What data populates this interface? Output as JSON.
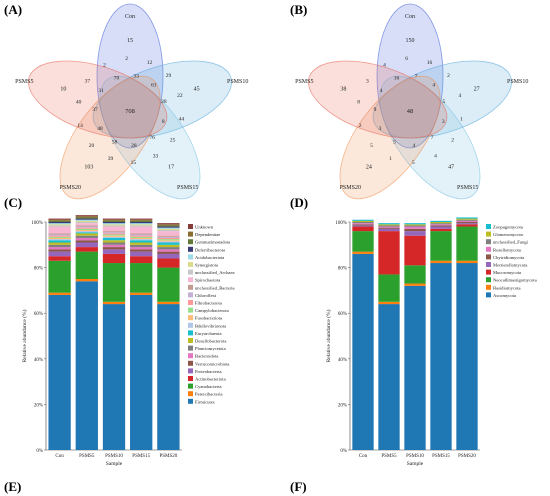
{
  "panel_labels": {
    "a": "(A)",
    "b": "(B)",
    "c": "(C)",
    "d": "(D)",
    "e": "(E)",
    "f": "(F)"
  },
  "colors": {
    "venn": [
      "#3b5bdb",
      "#4ea3d9",
      "#74c0e3",
      "#f08c4a",
      "#e8604c"
    ],
    "stack": [
      "#1f77b4",
      "#ff7f0e",
      "#2ca02c",
      "#d62728",
      "#9467bd",
      "#8c564b",
      "#e377c2",
      "#7f7f7f",
      "#bcbd22",
      "#17becf",
      "#aec7e8",
      "#ffbb78",
      "#98df8a",
      "#ff9896",
      "#c5b0d5",
      "#c49c94",
      "#f7b6d2",
      "#c7c7c7",
      "#dbdb8d",
      "#9edae5",
      "#393b79",
      "#637939",
      "#8c6d31",
      "#843c39",
      "#7b4173"
    ]
  },
  "chart_data": [
    {
      "type": "venn",
      "panel": "A",
      "sets": [
        "Con",
        "PSMS10",
        "PSMS15",
        "PSMS20",
        "PSMS5"
      ],
      "unique": {
        "Con": "15",
        "PSMS10": "45",
        "PSMS15": "17",
        "PSMS20": "103",
        "PSMS5": "10"
      },
      "shared": {
        "core": "708",
        "petal": [
          "33",
          "61",
          "28",
          "8",
          "76",
          "28",
          "58",
          "48",
          "37",
          "31",
          "70"
        ],
        "outer": [
          "12",
          "29",
          "22",
          "44",
          "25",
          "33",
          "15",
          "39",
          "20",
          "14",
          "40",
          "37",
          "2",
          "2"
        ]
      }
    },
    {
      "type": "venn",
      "panel": "B",
      "sets": [
        "Con",
        "PSMS10",
        "PSMS15",
        "PSMS20",
        "PSMS5"
      ],
      "unique": {
        "Con": "150",
        "PSMS10": "27",
        "PSMS15": "47",
        "PSMS20": "24",
        "PSMS5": "38"
      },
      "shared": {
        "core": "48",
        "petal": [
          "7",
          "4",
          "5",
          "3",
          "7",
          "4",
          "5",
          "3",
          "9",
          "4",
          "16"
        ],
        "outer": [
          "16",
          "2",
          "4",
          "1",
          "2",
          "4",
          "5",
          "1",
          "5",
          "2",
          "8",
          "3",
          "4",
          "6"
        ]
      }
    },
    {
      "type": "bar",
      "stacked": true,
      "panel": "C",
      "xlabel": "Sample",
      "ylabel": "Relative abundance (%)",
      "ylim": [
        0,
        100
      ],
      "yticks": [
        "0%",
        "20%",
        "40%",
        "60%",
        "80%",
        "100%"
      ],
      "categories": [
        "Con",
        "PSMS5",
        "PSMS10",
        "PSMS15",
        "PSMS20"
      ],
      "legend": [
        "Unknown",
        "Dependentiae",
        "Gemmatimonadota",
        "Deferribacterota",
        "Acidobacteriota",
        "Synergistota",
        "unclassified_Archaea",
        "Spirochaetota",
        "unclassified_Bacteria",
        "Chloroflexi",
        "Fibrobacterota",
        "Campylobacterota",
        "Fusobacteriota",
        "Bdellovibrionota",
        "Euryarchaeota",
        "Desulfobacterota",
        "Planctomycetota",
        "Bacteroidota",
        "Verrucomicrobiota",
        "Proteobacteria",
        "Actinobacteriota",
        "Cyanobacteria",
        "Patescibacteria",
        "Firmicutes"
      ],
      "series": [
        {
          "name": "Firmicutes",
          "values": [
            68,
            74,
            64,
            68,
            64
          ]
        },
        {
          "name": "Patescibacteria",
          "values": [
            1,
            1,
            1,
            1,
            1
          ]
        },
        {
          "name": "Cyanobacteria",
          "values": [
            14,
            12,
            17,
            13,
            15
          ]
        },
        {
          "name": "Actinobacteriota",
          "values": [
            2,
            2,
            4,
            3,
            4
          ]
        },
        {
          "name": "Proteobacteria",
          "values": [
            2,
            2,
            2,
            2,
            2
          ]
        },
        {
          "name": "Verrucomicrobiota",
          "values": [
            1,
            1,
            1,
            1,
            1
          ]
        },
        {
          "name": "Bacteroidota",
          "values": [
            1,
            1,
            1,
            1,
            1
          ]
        },
        {
          "name": "Planctomycetota",
          "values": [
            1,
            1,
            1,
            1,
            1
          ]
        },
        {
          "name": "Desulfobacterota",
          "values": [
            1,
            1,
            1,
            1,
            1
          ]
        },
        {
          "name": "Euryarchaeota",
          "values": [
            1,
            0.5,
            1,
            1,
            1
          ]
        },
        {
          "name": "Bdellovibrionota",
          "values": [
            0.5,
            0.5,
            0.5,
            0.5,
            0.5
          ]
        },
        {
          "name": "Fusobacteriota",
          "values": [
            0.5,
            0.5,
            0.5,
            0.5,
            0.5
          ]
        },
        {
          "name": "Campylobacterota",
          "values": [
            0.5,
            0.5,
            0.5,
            0.5,
            0.5
          ]
        },
        {
          "name": "Fibrobacterota",
          "values": [
            0.5,
            0.5,
            0.5,
            0.5,
            0.5
          ]
        },
        {
          "name": "Chloroflexi",
          "values": [
            0.5,
            0.5,
            0.5,
            0.5,
            0.5
          ]
        },
        {
          "name": "unclassified_Bacteria",
          "values": [
            0.5,
            0.5,
            0.5,
            0.5,
            0.5
          ]
        },
        {
          "name": "Spirochaetota",
          "values": [
            3,
            1,
            2,
            3,
            2
          ]
        },
        {
          "name": "unclassified_Archaea",
          "values": [
            0.5,
            0.5,
            0.5,
            0.5,
            0.5
          ]
        },
        {
          "name": "Synergistota",
          "values": [
            0.5,
            0.5,
            0.5,
            0.5,
            0.5
          ]
        },
        {
          "name": "Acidobacteriota",
          "values": [
            0.5,
            0.5,
            0.5,
            0.5,
            0.5
          ]
        },
        {
          "name": "Deferribacterota",
          "values": [
            0.5,
            0.5,
            0.5,
            0.5,
            0.5
          ]
        },
        {
          "name": "Gemmatimonadota",
          "values": [
            0.5,
            0.5,
            0.5,
            0.5,
            0.5
          ]
        },
        {
          "name": "Dependentiae",
          "values": [
            0.5,
            0.5,
            0.5,
            0.5,
            0.5
          ]
        },
        {
          "name": "Unknown",
          "values": [
            0.5,
            0.5,
            0.5,
            0.5,
            0.5
          ]
        }
      ]
    },
    {
      "type": "bar",
      "stacked": true,
      "panel": "D",
      "xlabel": "Sample",
      "ylabel": "Relative abundance (%)",
      "ylim": [
        0,
        100
      ],
      "yticks": [
        "0%",
        "20%",
        "40%",
        "60%",
        "80%",
        "100%"
      ],
      "categories": [
        "Con",
        "PSMS5",
        "PSMS10",
        "PSMS15",
        "PSMS20"
      ],
      "legend": [
        "Zoopagomycota",
        "Glomeromycota",
        "unclassified_Fungi",
        "Rozellomycota",
        "Chytridiomycota",
        "Mortierellomycota",
        "Mucoromycota",
        "Neocallimastigomycota",
        "Basidiomycota",
        "Ascomycota"
      ],
      "series": [
        {
          "name": "Ascomycota",
          "values": [
            86,
            64,
            72,
            82,
            82
          ]
        },
        {
          "name": "Basidiomycota",
          "values": [
            1,
            1,
            1,
            1,
            1
          ]
        },
        {
          "name": "Neocallimastigomycota",
          "values": [
            9,
            12,
            8,
            13,
            15
          ]
        },
        {
          "name": "Mucoromycota",
          "values": [
            2,
            19,
            13,
            1,
            1
          ]
        },
        {
          "name": "Mortierellomycota",
          "values": [
            0.5,
            1,
            2,
            1,
            0.5
          ]
        },
        {
          "name": "Chytridiomycota",
          "values": [
            0.5,
            0.5,
            1,
            0.5,
            0.5
          ]
        },
        {
          "name": "Rozellomycota",
          "values": [
            0.5,
            0.5,
            1,
            0.5,
            0.5
          ]
        },
        {
          "name": "unclassified_Fungi",
          "values": [
            0.5,
            0.5,
            0.5,
            0.5,
            0.5
          ]
        },
        {
          "name": "Glomeromycota",
          "values": [
            0.5,
            0.5,
            0.5,
            0.5,
            0.5
          ]
        },
        {
          "name": "Zoopagomycota",
          "values": [
            0.5,
            0.5,
            0.5,
            0.5,
            0.5
          ]
        }
      ]
    }
  ]
}
